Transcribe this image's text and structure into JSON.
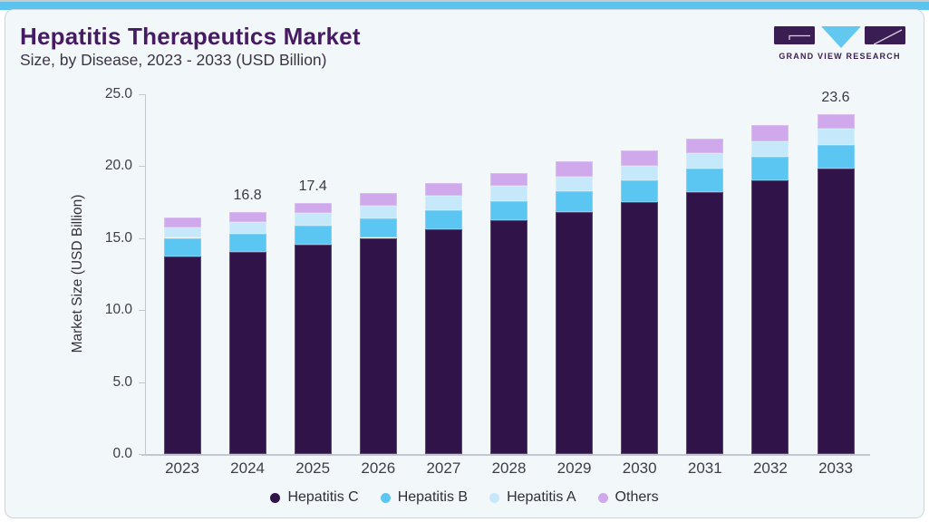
{
  "header": {
    "title": "Hepatitis Therapeutics Market",
    "subtitle": "Size, by Disease, 2023 - 2033 (USD Billion)"
  },
  "logo": {
    "text": "GRAND VIEW RESEARCH",
    "purple": "#3a1d52",
    "blue": "#62c8f0"
  },
  "theme": {
    "accent_bar": "#5ac3ee",
    "card_bg": "#f2f7fa",
    "card_border": "#ccd3da",
    "axis_line": "#c2c8ce",
    "tick_text": "#3e3e45",
    "value_label_text": "#3a3a41"
  },
  "chart_data": {
    "type": "bar",
    "stacked": true,
    "title": "Hepatitis Therapeutics Market Size, by Disease, 2023 - 2033 (USD Billion)",
    "categories": [
      "2023",
      "2024",
      "2025",
      "2026",
      "2027",
      "2028",
      "2029",
      "2030",
      "2031",
      "2032",
      "2033"
    ],
    "series": [
      {
        "name": "Hepatitis C",
        "color": "#301449",
        "values": [
          13.7,
          14.0,
          14.5,
          15.0,
          15.6,
          16.2,
          16.8,
          17.5,
          18.2,
          19.0,
          19.8
        ]
      },
      {
        "name": "Hepatitis B",
        "color": "#5bc6f2",
        "values": [
          1.3,
          1.3,
          1.35,
          1.35,
          1.3,
          1.35,
          1.45,
          1.5,
          1.6,
          1.6,
          1.65
        ]
      },
      {
        "name": "Hepatitis A",
        "color": "#c5e9fb",
        "values": [
          0.75,
          0.8,
          0.85,
          0.9,
          1.0,
          1.05,
          1.0,
          1.0,
          1.05,
          1.1,
          1.15
        ]
      },
      {
        "name": "Others",
        "color": "#cfa9ec",
        "values": [
          0.65,
          0.7,
          0.7,
          0.85,
          0.9,
          0.9,
          1.05,
          1.1,
          1.05,
          1.1,
          1.0
        ]
      }
    ],
    "totals": [
      16.4,
      16.8,
      17.4,
      18.1,
      18.8,
      19.5,
      20.3,
      21.1,
      21.9,
      22.8,
      23.6
    ],
    "bar_labels": [
      "",
      "16.8",
      "17.4",
      "",
      "",
      "",
      "",
      "",
      "",
      "",
      "23.6"
    ],
    "xlabel": "",
    "ylabel": "Market Size (USD Billion)",
    "ylim": [
      0,
      25
    ],
    "yticks": [
      "0.0",
      "5.0",
      "10.0",
      "15.0",
      "20.0",
      "25.0"
    ],
    "grid": false,
    "legend_position": "bottom",
    "legend": [
      "Hepatitis C",
      "Hepatitis B",
      "Hepatitis A",
      "Others"
    ]
  }
}
